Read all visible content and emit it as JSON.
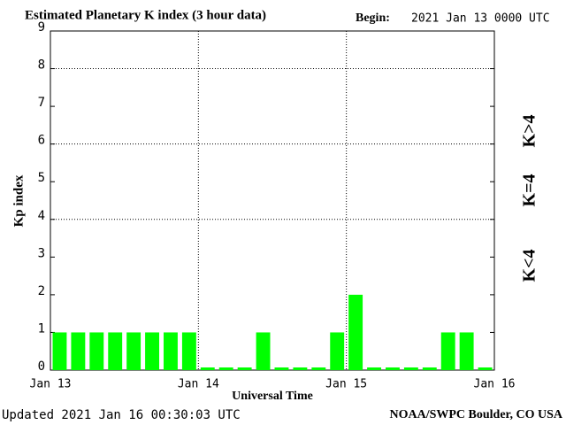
{
  "chart_data": {
    "type": "bar",
    "title": "Estimated Planetary K index (3 hour data)",
    "begin_label": "Begin:",
    "begin_value": "2021 Jan 13 0000 UTC",
    "ylabel": "Kp index",
    "xlabel": "Universal Time",
    "categories": [
      null,
      null,
      null,
      null,
      null,
      null,
      null,
      null,
      null,
      null,
      null,
      null,
      null,
      null,
      null,
      null,
      null,
      null,
      null,
      null,
      null,
      null,
      null,
      null
    ],
    "values": [
      1,
      1,
      1,
      1,
      1,
      1,
      1,
      1,
      0,
      0,
      0,
      1,
      0,
      0,
      0,
      1,
      2,
      0,
      0,
      0,
      0,
      1,
      1,
      0
    ],
    "color": "#00ff00",
    "xtick_labels": [
      "Jan 13",
      "Jan 14",
      "Jan 15",
      "Jan 16"
    ],
    "ylim": [
      0,
      9
    ],
    "yticks": [
      0,
      1,
      2,
      3,
      4,
      5,
      6,
      7,
      8,
      9
    ],
    "ygrid": [
      4,
      6,
      8
    ],
    "legend": [
      {
        "label": "K<4",
        "color": "#22ee22"
      },
      {
        "label": "K=4",
        "color": "#ffd000"
      },
      {
        "label": "K>4",
        "color": "#ff2000"
      }
    ],
    "updated": "Updated 2021 Jan 16 00:30:03 UTC",
    "source": "NOAA/SWPC Boulder, CO USA"
  }
}
